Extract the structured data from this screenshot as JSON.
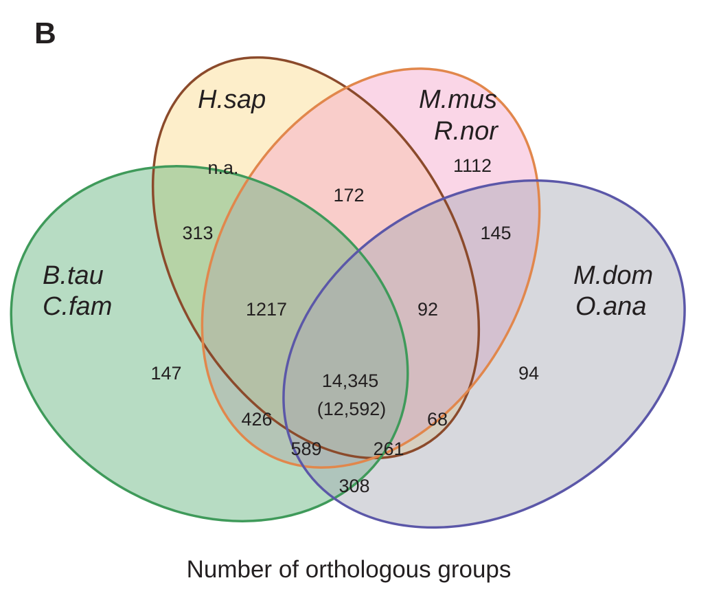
{
  "panel_label": "B",
  "sets": [
    {
      "name": "H.sap",
      "lines": [
        "H.sap"
      ],
      "fill": "#fbd98a",
      "stroke": "#8b4a2b"
    },
    {
      "name": "M.mus R.nor",
      "lines": [
        "M.mus",
        "R.nor"
      ],
      "fill": "#f3a3c9",
      "stroke": "#e1874c"
    },
    {
      "name": "B.tau C.fam",
      "lines": [
        "B.tau",
        "C.fam"
      ],
      "fill": "#5fb27a",
      "stroke": "#3f9a5a"
    },
    {
      "name": "M.dom O.ana",
      "lines": [
        "M.dom",
        "O.ana"
      ],
      "fill": "#a7a9b4",
      "stroke": "#5b57a8"
    }
  ],
  "regions": [
    {
      "sets": [
        "H.sap"
      ],
      "label": "n.a."
    },
    {
      "sets": [
        "M.mus R.nor"
      ],
      "label": "1112"
    },
    {
      "sets": [
        "B.tau C.fam"
      ],
      "label": "147"
    },
    {
      "sets": [
        "M.dom O.ana"
      ],
      "label": "94"
    },
    {
      "sets": [
        "H.sap",
        "M.mus R.nor"
      ],
      "label": "172"
    },
    {
      "sets": [
        "H.sap",
        "B.tau C.fam"
      ],
      "label": "313"
    },
    {
      "sets": [
        "M.mus R.nor",
        "M.dom O.ana"
      ],
      "label": "145"
    },
    {
      "sets": [
        "H.sap",
        "M.mus R.nor",
        "B.tau C.fam"
      ],
      "label": "1217"
    },
    {
      "sets": [
        "H.sap",
        "M.mus R.nor",
        "M.dom O.ana"
      ],
      "label": "92"
    },
    {
      "sets": [
        "H.sap",
        "M.mus R.nor",
        "B.tau C.fam",
        "M.dom O.ana"
      ],
      "label": "14,345",
      "sublabel": "(12,592)"
    },
    {
      "sets": [
        "M.mus R.nor",
        "B.tau C.fam"
      ],
      "label": "426"
    },
    {
      "sets": [
        "H.sap",
        "M.dom O.ana"
      ],
      "label": "68"
    },
    {
      "sets": [
        "M.mus R.nor",
        "B.tau C.fam",
        "M.dom O.ana"
      ],
      "label": "589"
    },
    {
      "sets": [
        "H.sap",
        "B.tau C.fam",
        "M.dom O.ana"
      ],
      "label": "261"
    },
    {
      "sets": [
        "B.tau C.fam",
        "M.dom O.ana"
      ],
      "label": "308"
    }
  ],
  "caption": "Number of orthologous groups"
}
